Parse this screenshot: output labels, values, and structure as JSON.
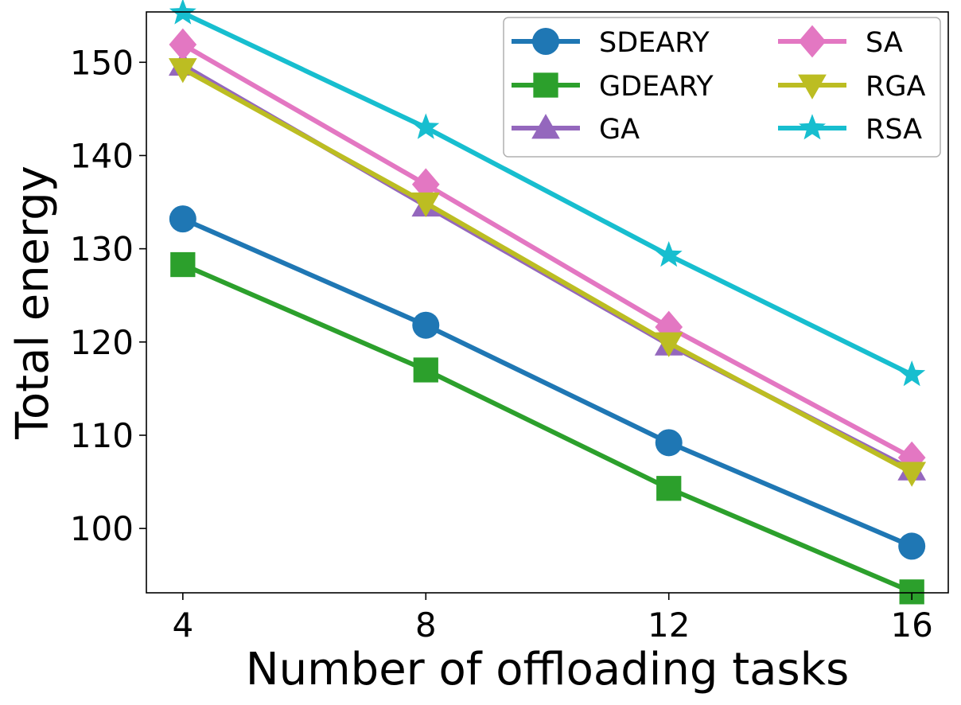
{
  "chart_data": {
    "type": "line",
    "xlabel": "Number of offloading tasks",
    "ylabel": "Total energy",
    "x": [
      4,
      8,
      12,
      16
    ],
    "xticks": [
      "4",
      "8",
      "12",
      "16"
    ],
    "yticks": [
      "100",
      "110",
      "120",
      "130",
      "140",
      "150"
    ],
    "ytick_values": [
      100,
      110,
      120,
      130,
      140,
      150
    ],
    "xlim": [
      3.4,
      16.6
    ],
    "ylim": [
      93.1,
      155.4
    ],
    "grid": false,
    "legend_position": "top-right",
    "series": [
      {
        "name": "SDEARY",
        "values": [
          133.2,
          121.8,
          109.2,
          98.1
        ],
        "color": "#1f77b4",
        "marker": "circle"
      },
      {
        "name": "GDEARY",
        "values": [
          128.3,
          117.0,
          104.3,
          93.2
        ],
        "color": "#2ca02c",
        "marker": "square"
      },
      {
        "name": "GA",
        "values": [
          149.7,
          134.6,
          119.7,
          106.3
        ],
        "color": "#9467bd",
        "marker": "triangle-up"
      },
      {
        "name": "SA",
        "values": [
          151.9,
          136.9,
          121.6,
          107.6
        ],
        "color": "#e377c2",
        "marker": "diamond"
      },
      {
        "name": "RGA",
        "values": [
          149.3,
          134.9,
          119.9,
          106.0
        ],
        "color": "#bcbd22",
        "marker": "triangle-down"
      },
      {
        "name": "RSA",
        "values": [
          155.3,
          143.0,
          129.3,
          116.5
        ],
        "color": "#17becf",
        "marker": "star"
      }
    ]
  }
}
